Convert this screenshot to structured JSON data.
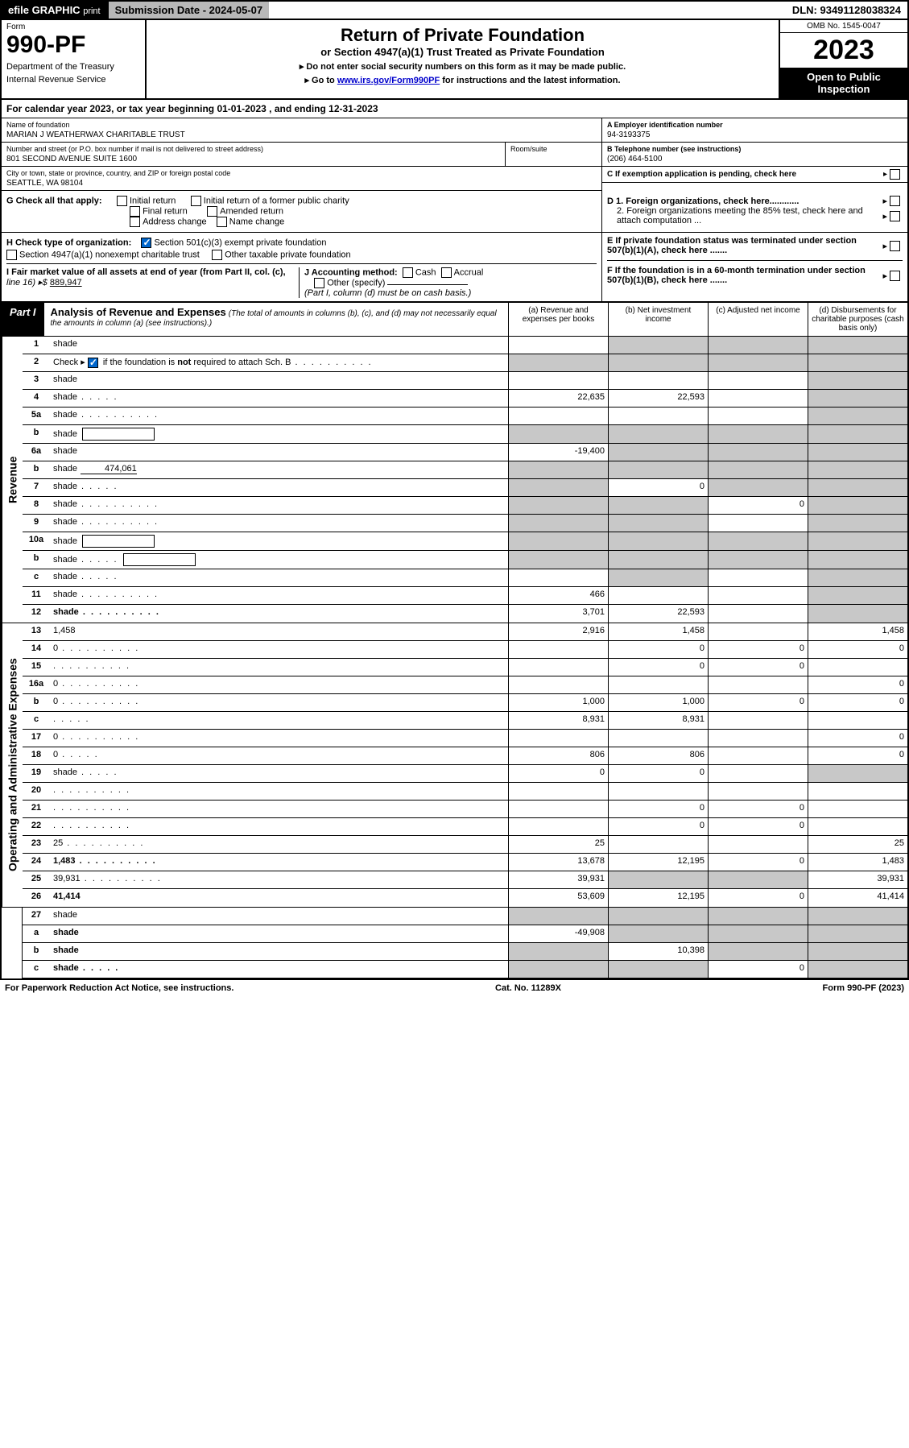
{
  "top": {
    "efile": "efile GRAPHIC",
    "print": "print",
    "subdate_label": "Submission Date - ",
    "subdate": "2024-05-07",
    "dln_label": "DLN: ",
    "dln": "93491128038324"
  },
  "header": {
    "form_label": "Form",
    "form_number": "990-PF",
    "dept": "Department of the Treasury",
    "irs": "Internal Revenue Service",
    "title": "Return of Private Foundation",
    "subtitle": "or Section 4947(a)(1) Trust Treated as Private Foundation",
    "instr1": "▸ Do not enter social security numbers on this form as it may be made public.",
    "instr2_pre": "▸ Go to ",
    "instr2_link": "www.irs.gov/Form990PF",
    "instr2_post": " for instructions and the latest information.",
    "omb": "OMB No. 1545-0047",
    "year": "2023",
    "open": "Open to Public Inspection"
  },
  "cal_year": "For calendar year 2023, or tax year beginning 01-01-2023           , and ending 12-31-2023",
  "info": {
    "name_label": "Name of foundation",
    "name": "MARIAN J WEATHERWAX CHARITABLE TRUST",
    "addr_label": "Number and street (or P.O. box number if mail is not delivered to street address)",
    "addr": "801 SECOND AVENUE SUITE 1600",
    "room_label": "Room/suite",
    "city_label": "City or town, state or province, country, and ZIP or foreign postal code",
    "city": "SEATTLE, WA  98104",
    "ein_label": "A Employer identification number",
    "ein": "94-3193375",
    "phone_label": "B Telephone number (see instructions)",
    "phone": "(206) 464-5100",
    "c_label": "C If exemption application is pending, check here"
  },
  "g": {
    "label": "G Check all that apply:",
    "initial": "Initial return",
    "initial_former": "Initial return of a former public charity",
    "final": "Final return",
    "amended": "Amended return",
    "addr_change": "Address change",
    "name_change": "Name change"
  },
  "d": {
    "d1": "D 1. Foreign organizations, check here............",
    "d2": "2. Foreign organizations meeting the 85% test, check here and attach computation ...",
    "e": "E  If private foundation status was terminated under section 507(b)(1)(A), check here .......",
    "f": "F  If the foundation is in a 60-month termination under section 507(b)(1)(B), check here ......."
  },
  "h": {
    "label": "H Check type of organization:",
    "opt1": "Section 501(c)(3) exempt private foundation",
    "opt2": "Section 4947(a)(1) nonexempt charitable trust",
    "opt3": "Other taxable private foundation"
  },
  "i": {
    "label": "I Fair market value of all assets at end of year (from Part II, col. (c),",
    "line": "line 16) ▸$",
    "val": "889,947"
  },
  "j": {
    "label": "J Accounting method:",
    "cash": "Cash",
    "accrual": "Accrual",
    "other": "Other (specify)",
    "note": "(Part I, column (d) must be on cash basis.)"
  },
  "part1": {
    "label": "Part I",
    "title": "Analysis of Revenue and Expenses",
    "subtitle": "(The total of amounts in columns (b), (c), and (d) may not necessarily equal the amounts in column (a) (see instructions).)",
    "col_a": "(a)   Revenue and expenses per books",
    "col_b": "(b)   Net investment income",
    "col_c": "(c)   Adjusted net income",
    "col_d": "(d)   Disbursements for charitable purposes (cash basis only)"
  },
  "sections": {
    "revenue": "Revenue",
    "expenses": "Operating and Administrative Expenses"
  },
  "rows": [
    {
      "n": "1",
      "d": "shade",
      "a": "",
      "b": "shade",
      "c": "shade"
    },
    {
      "n": "2",
      "d": "shade",
      "dots": true,
      "a": "shade",
      "b": "shade",
      "c": "shade",
      "cb": true
    },
    {
      "n": "3",
      "d": "shade",
      "a": "",
      "b": "",
      "c": ""
    },
    {
      "n": "4",
      "d": "shade",
      "dots": "short",
      "a": "22,635",
      "b": "22,593",
      "c": ""
    },
    {
      "n": "5a",
      "d": "shade",
      "dots": true,
      "a": "",
      "b": "",
      "c": ""
    },
    {
      "n": "b",
      "d": "shade",
      "box": true,
      "a": "shade",
      "b": "shade",
      "c": "shade"
    },
    {
      "n": "6a",
      "d": "shade",
      "a": "-19,400",
      "b": "shade",
      "c": "shade"
    },
    {
      "n": "b",
      "d": "shade",
      "inline": "474,061",
      "a": "shade",
      "b": "shade",
      "c": "shade"
    },
    {
      "n": "7",
      "d": "shade",
      "dots": "short",
      "a": "shade",
      "b": "0",
      "c": "shade"
    },
    {
      "n": "8",
      "d": "shade",
      "dots": true,
      "a": "shade",
      "b": "shade",
      "c": "0"
    },
    {
      "n": "9",
      "d": "shade",
      "dots": true,
      "a": "shade",
      "b": "shade",
      "c": ""
    },
    {
      "n": "10a",
      "d": "shade",
      "box": true,
      "a": "shade",
      "b": "shade",
      "c": "shade"
    },
    {
      "n": "b",
      "d": "shade",
      "dots": "short",
      "box": true,
      "a": "shade",
      "b": "shade",
      "c": "shade"
    },
    {
      "n": "c",
      "d": "shade",
      "dots": "short",
      "a": "",
      "b": "shade",
      "c": ""
    },
    {
      "n": "11",
      "d": "shade",
      "dots": true,
      "a": "466",
      "b": "",
      "c": ""
    },
    {
      "n": "12",
      "d": "shade",
      "dots": true,
      "bold": true,
      "a": "3,701",
      "b": "22,593",
      "c": ""
    }
  ],
  "exp_rows": [
    {
      "n": "13",
      "d": "1,458",
      "a": "2,916",
      "b": "1,458",
      "c": ""
    },
    {
      "n": "14",
      "d": "0",
      "dots": true,
      "a": "",
      "b": "0",
      "c": "0"
    },
    {
      "n": "15",
      "d": "",
      "dots": true,
      "a": "",
      "b": "0",
      "c": "0"
    },
    {
      "n": "16a",
      "d": "0",
      "dots": true,
      "a": "",
      "b": "",
      "c": ""
    },
    {
      "n": "b",
      "d": "0",
      "dots": true,
      "a": "1,000",
      "b": "1,000",
      "c": "0"
    },
    {
      "n": "c",
      "d": "",
      "dots": "short",
      "a": "8,931",
      "b": "8,931",
      "c": ""
    },
    {
      "n": "17",
      "d": "0",
      "dots": true,
      "a": "",
      "b": "",
      "c": ""
    },
    {
      "n": "18",
      "d": "0",
      "dots": "short",
      "a": "806",
      "b": "806",
      "c": ""
    },
    {
      "n": "19",
      "d": "shade",
      "dots": "short",
      "a": "0",
      "b": "0",
      "c": ""
    },
    {
      "n": "20",
      "d": "",
      "dots": true,
      "a": "",
      "b": "",
      "c": ""
    },
    {
      "n": "21",
      "d": "",
      "dots": true,
      "a": "",
      "b": "0",
      "c": "0"
    },
    {
      "n": "22",
      "d": "",
      "dots": true,
      "a": "",
      "b": "0",
      "c": "0"
    },
    {
      "n": "23",
      "d": "25",
      "dots": true,
      "a": "25",
      "b": "",
      "c": ""
    },
    {
      "n": "24",
      "d": "1,483",
      "dots": true,
      "bold": true,
      "a": "13,678",
      "b": "12,195",
      "c": "0"
    },
    {
      "n": "25",
      "d": "39,931",
      "dots": true,
      "a": "39,931",
      "b": "shade",
      "c": "shade"
    },
    {
      "n": "26",
      "d": "41,414",
      "bold": true,
      "a": "53,609",
      "b": "12,195",
      "c": "0"
    }
  ],
  "bottom_rows": [
    {
      "n": "27",
      "d": "shade",
      "a": "shade",
      "b": "shade",
      "c": "shade"
    },
    {
      "n": "a",
      "d": "shade",
      "bold": true,
      "a": "-49,908",
      "b": "shade",
      "c": "shade"
    },
    {
      "n": "b",
      "d": "shade",
      "bold": true,
      "a": "shade",
      "b": "10,398",
      "c": "shade"
    },
    {
      "n": "c",
      "d": "shade",
      "dots": "short",
      "bold": true,
      "a": "shade",
      "b": "shade",
      "c": "0"
    }
  ],
  "footer": {
    "left": "For Paperwork Reduction Act Notice, see instructions.",
    "center": "Cat. No. 11289X",
    "right": "Form 990-PF (2023)"
  }
}
